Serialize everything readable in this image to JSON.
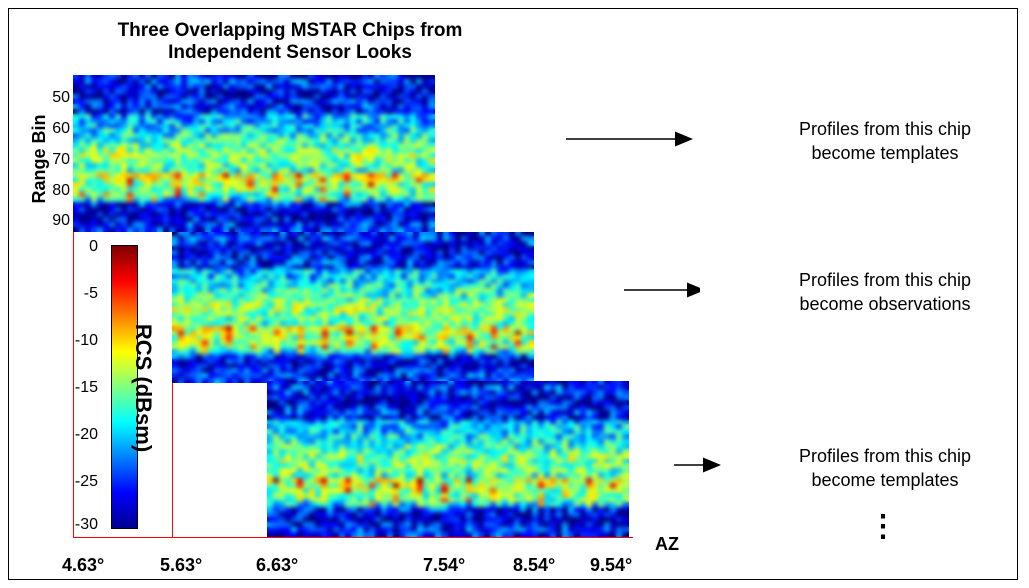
{
  "title_lines": [
    "Three Overlapping MSTAR Chips from",
    "Independent Sensor Looks"
  ],
  "y_axis_label": "Range Bin",
  "y_ticks": [
    "50",
    "60",
    "70",
    "80",
    "90"
  ],
  "colorbar": {
    "label": "RCS (dBsm)",
    "ticks": [
      "0",
      "-5",
      "-10",
      "-15",
      "-20",
      "-25",
      "-30"
    ],
    "colors": [
      "#7f0000",
      "#ff0000",
      "#ff8000",
      "#ffff00",
      "#80ff80",
      "#00ffff",
      "#0080ff",
      "#0000ff",
      "#00008f"
    ]
  },
  "x_axis_label": "AZ",
  "x_ticks": [
    "4.63°",
    "5.63°",
    "6.63°",
    "7.54°",
    "8.54°",
    "9.54°"
  ],
  "chips": [
    {
      "caption_line1": "Profiles from this chip",
      "caption_line2": "become templates"
    },
    {
      "caption_line1": "Profiles from this chip",
      "caption_line2": "become observations"
    },
    {
      "caption_line1": "Profiles from this chip",
      "caption_line2": "become templates"
    }
  ],
  "continuation": "⋮"
}
